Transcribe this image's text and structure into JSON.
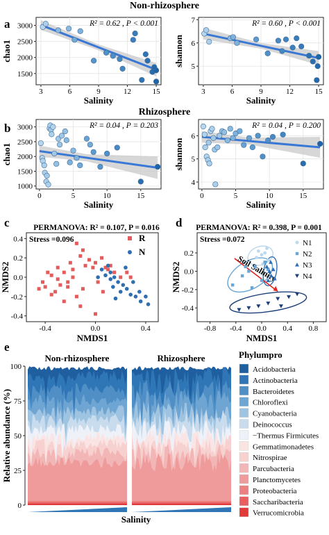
{
  "colors": {
    "point_dark": "#1f63a8",
    "point_mid": "#5b9bd0",
    "point_light": "#cfe5f5",
    "fit_line": "#3a78d6",
    "ci_band": "#c9c9c9",
    "r_marker": "#e35b5b",
    "n_marker": "#2f6fb1",
    "arrow": "#e32222"
  },
  "labels": {
    "a": "a",
    "b": "b",
    "c": "c",
    "d": "d",
    "e": "e",
    "nonrhizo_title": "Non-rhizosphere",
    "rhizo_title": "Rhizosphere",
    "salinity": "Salinity",
    "chao1": "chao1",
    "shannon": "shannon",
    "nmds1": "NMDS1",
    "nmds2": "NMDS2",
    "rel_abund": "Relative abundance (%)",
    "e_nonrhizo": "Non-rhizosphere",
    "e_rhizo": "Rhizosphere",
    "e_salinity": "Salinity",
    "phylum_title": "Phylumpro"
  },
  "chart_data": [
    {
      "id": "a-chao1",
      "type": "scatter",
      "stats": "R² = 0.62 , P < 0.001",
      "xlabel": "Salinity",
      "ylabel": "chao1",
      "xlim": [
        2.5,
        15.5
      ],
      "ylim": [
        1150,
        3250
      ],
      "xticks": [
        3,
        6,
        9,
        12,
        15
      ],
      "yticks": [
        1500,
        2000,
        2500,
        3000
      ],
      "fit": [
        [
          3,
          3010
        ],
        [
          15,
          1620
        ]
      ],
      "ci_half": [
        [
          3,
          150
        ],
        [
          9,
          90
        ],
        [
          15,
          210
        ]
      ],
      "x": [
        3.2,
        3.5,
        4.8,
        5.9,
        6.5,
        7.1,
        8.5,
        9.8,
        10.5,
        11.2,
        11.5,
        12.6,
        12.8,
        13.5,
        13.9,
        14.1,
        14.6,
        14.8,
        15.0,
        15.0,
        14.8
      ],
      "y": [
        2950,
        3050,
        2850,
        2900,
        2550,
        2820,
        1900,
        2150,
        2050,
        1950,
        1650,
        2550,
        2750,
        1300,
        2100,
        1900,
        1550,
        1620,
        1250,
        1600,
        1700
      ],
      "shade": [
        0.1,
        0.15,
        0.3,
        0.3,
        0.4,
        0.35,
        0.55,
        0.6,
        0.62,
        0.68,
        0.7,
        0.75,
        0.78,
        0.85,
        0.85,
        0.88,
        0.92,
        0.95,
        1,
        1,
        0.95
      ]
    },
    {
      "id": "a-shannon",
      "type": "scatter",
      "stats": "R² = 0.60 , P < 0.001",
      "xlabel": "Salinity",
      "ylabel": "shannon",
      "xlim": [
        2.5,
        15.5
      ],
      "ylim": [
        4.2,
        7.1
      ],
      "xticks": [
        3,
        6,
        9,
        12,
        15
      ],
      "yticks": [
        5,
        6,
        7
      ],
      "fit": [
        [
          3,
          6.4
        ],
        [
          15,
          5.35
        ]
      ],
      "ci_half": [
        [
          3,
          0.25
        ],
        [
          9,
          0.12
        ],
        [
          15,
          0.3
        ]
      ],
      "x": [
        3.1,
        3.3,
        3.6,
        5.8,
        6.1,
        6.5,
        8.5,
        9.7,
        10.8,
        11.2,
        11.6,
        12.3,
        12.7,
        13.2,
        14.0,
        14.4,
        14.9,
        15.0,
        14.8
      ],
      "y": [
        6.4,
        6.55,
        6.05,
        6.2,
        6.25,
        6.0,
        6.15,
        5.55,
        6.1,
        5.65,
        6.15,
        5.8,
        6.2,
        5.85,
        5.45,
        5.2,
        5.0,
        5.4,
        4.4
      ],
      "shade": [
        0.1,
        0.15,
        0.15,
        0.3,
        0.35,
        0.35,
        0.5,
        0.6,
        0.65,
        0.68,
        0.7,
        0.75,
        0.78,
        0.8,
        0.88,
        0.9,
        0.95,
        1,
        0.95
      ]
    },
    {
      "id": "b-chao1",
      "type": "scatter",
      "stats": "R² = 0.04 , P = 0.203",
      "xlabel": "Salinity",
      "ylabel": "chao1",
      "xlim": [
        -0.5,
        18
      ],
      "ylim": [
        900,
        3250
      ],
      "xticks": [
        0,
        5,
        10,
        15
      ],
      "yticks": [
        1000,
        1500,
        2000,
        2500,
        3000
      ],
      "fit": [
        [
          0,
          2180
        ],
        [
          17.5,
          1620
        ]
      ],
      "ci_half": [
        [
          0,
          190
        ],
        [
          7,
          120
        ],
        [
          17.5,
          380
        ]
      ],
      "x": [
        0.2,
        0.4,
        0.5,
        0.7,
        0.8,
        1.0,
        1.1,
        1.3,
        1.5,
        1.6,
        1.7,
        1.8,
        2.0,
        2.2,
        2.5,
        2.8,
        3.0,
        3.3,
        3.8,
        4.0,
        4.5,
        5.0,
        5.5,
        6.0,
        7.0,
        7.5,
        8.0,
        9.0,
        10.0,
        11.5,
        15.0,
        17.5
      ],
      "y": [
        2450,
        1950,
        1850,
        1700,
        1450,
        1150,
        1350,
        1050,
        2950,
        3050,
        2900,
        2750,
        3000,
        2100,
        1750,
        2600,
        2400,
        2700,
        2850,
        2550,
        1800,
        2200,
        1950,
        1700,
        2600,
        2400,
        2150,
        1650,
        2100,
        2300,
        1150,
        1650
      ],
      "shade": [
        0.1,
        0.12,
        0.12,
        0.15,
        0.15,
        0.15,
        0.18,
        0.15,
        0.12,
        0.15,
        0.2,
        0.15,
        0.12,
        0.2,
        0.25,
        0.2,
        0.22,
        0.2,
        0.25,
        0.3,
        0.35,
        0.3,
        0.35,
        0.4,
        0.45,
        0.4,
        0.5,
        0.55,
        0.6,
        0.65,
        0.9,
        1
      ]
    },
    {
      "id": "b-shannon",
      "type": "scatter",
      "stats": "R² = 0.04 , P = 0.200",
      "xlabel": "Salinity",
      "ylabel": "shannon",
      "xlim": [
        -0.5,
        18
      ],
      "ylim": [
        3.7,
        6.7
      ],
      "xticks": [
        0,
        5,
        10,
        15
      ],
      "yticks": [
        4,
        5,
        6
      ],
      "fit": [
        [
          0,
          5.95
        ],
        [
          17.5,
          5.5
        ]
      ],
      "ci_half": [
        [
          0,
          0.25
        ],
        [
          7,
          0.15
        ],
        [
          17.5,
          0.45
        ]
      ],
      "x": [
        0.2,
        0.4,
        0.5,
        0.7,
        0.9,
        1.0,
        1.1,
        1.3,
        1.5,
        1.7,
        1.9,
        2.0,
        2.3,
        2.6,
        3.0,
        3.3,
        3.8,
        4.2,
        4.6,
        5.0,
        5.6,
        6.2,
        7.0,
        7.5,
        8.3,
        9.0,
        9.8,
        10.5,
        12.0,
        15.0,
        17.5
      ],
      "y": [
        6.4,
        6.05,
        5.5,
        5.1,
        4.95,
        5.7,
        4.8,
        6.2,
        6.3,
        5.9,
        5.4,
        3.9,
        5.5,
        6.0,
        6.2,
        6.15,
        5.8,
        6.3,
        5.9,
        6.1,
        6.2,
        5.6,
        5.9,
        5.5,
        6.0,
        5.1,
        5.8,
        5.95,
        6.05,
        4.8,
        5.65
      ],
      "shade": [
        0.1,
        0.12,
        0.15,
        0.12,
        0.15,
        0.18,
        0.15,
        0.12,
        0.15,
        0.2,
        0.2,
        0.15,
        0.22,
        0.2,
        0.25,
        0.25,
        0.3,
        0.3,
        0.35,
        0.35,
        0.4,
        0.45,
        0.45,
        0.5,
        0.55,
        0.6,
        0.6,
        0.65,
        0.7,
        0.9,
        1
      ]
    },
    {
      "id": "c-nmds",
      "type": "scatter",
      "title": "PERMANOVA: R² = 0.107, P = 0.016",
      "stress": "Stress =0.096",
      "xlabel": "NMDS1",
      "ylabel": "NMDS2",
      "xlim": [
        -0.55,
        0.5
      ],
      "ylim": [
        -0.46,
        0.46
      ],
      "xticks": [
        -0.4,
        0.0,
        0.4
      ],
      "xtick_labels": [
        "-0.4",
        "0.0",
        "0.4"
      ],
      "yticks": [
        -0.4,
        -0.2,
        0.0,
        0.2,
        0.4
      ],
      "ytick_labels": [
        "-0.4",
        "-0.2",
        "0.0",
        "0.2",
        "0.4"
      ],
      "legend": [
        "R",
        "N"
      ],
      "series": [
        {
          "name": "R",
          "x": [
            -0.15,
            -0.1,
            -0.12,
            -0.2,
            -0.25,
            -0.3,
            -0.35,
            -0.18,
            -0.22,
            -0.28,
            -0.4,
            -0.45,
            -0.38,
            -0.32,
            -0.05,
            -0.08,
            -0.02,
            0.0,
            0.05,
            0.08,
            0.02,
            -0.15,
            -0.25,
            -0.35,
            -0.42,
            -0.12,
            0.12,
            0.15,
            0.1,
            0.2,
            -0.3,
            -0.22,
            -0.18,
            0.25,
            0.28,
            0.0,
            0.06,
            -0.1
          ],
          "y": [
            0.35,
            0.28,
            0.22,
            0.15,
            0.05,
            0.1,
            0.02,
            0.0,
            -0.05,
            -0.08,
            -0.1,
            -0.12,
            0.05,
            -0.15,
            0.18,
            0.12,
            0.1,
            0.15,
            0.2,
            0.1,
            -0.05,
            -0.2,
            -0.25,
            -0.18,
            -0.05,
            -0.3,
            0.12,
            0.05,
            0.08,
            0.0,
            -0.02,
            -0.1,
            0.08,
            0.05,
            0.0,
            -0.38,
            -0.15,
            -0.12
          ]
        },
        {
          "name": "N",
          "x": [
            0.05,
            0.08,
            0.12,
            0.15,
            0.18,
            0.22,
            0.25,
            0.2,
            0.28,
            0.32,
            0.35,
            0.1,
            0.14,
            0.3,
            0.4,
            0.42,
            0.02,
            0.16,
            0.24,
            0.36,
            0.12
          ],
          "y": [
            0.08,
            0.02,
            0.05,
            0.0,
            -0.05,
            -0.08,
            -0.12,
            -0.15,
            -0.18,
            -0.2,
            -0.15,
            0.12,
            -0.1,
            -0.05,
            -0.2,
            -0.28,
            0.0,
            -0.22,
            0.1,
            -0.25,
            -0.02
          ]
        }
      ]
    },
    {
      "id": "d-nmds",
      "type": "scatter",
      "title": "PERMANOVA: R² = 0.398, P = 0.001",
      "stress": "Stress =0.072",
      "xlabel": "NMDS1",
      "ylabel": "NMDS2",
      "xlim": [
        -1.0,
        1.0
      ],
      "ylim": [
        -0.55,
        0.42
      ],
      "xticks": [
        -0.8,
        -0.4,
        0.0,
        0.4,
        0.8
      ],
      "xtick_labels": [
        "-0.8",
        "-0.4",
        "0.0",
        "0.4",
        "0.8"
      ],
      "yticks": [
        -0.4,
        -0.2,
        0.0,
        0.2
      ],
      "ytick_labels": [
        "-0.4",
        "-0.2",
        "0.0",
        "0.2"
      ],
      "arrow_label": "Soil Salinity",
      "legend": [
        "N1",
        "N2",
        "N3",
        "N4"
      ],
      "series": [
        {
          "name": "N1",
          "x": [
            -0.05,
            0.0,
            0.05,
            0.1,
            0.02,
            -0.08,
            0.08
          ],
          "y": [
            0.22,
            0.18,
            0.2,
            0.12,
            0.08,
            0.15,
            0.25
          ]
        },
        {
          "name": "N2",
          "x": [
            -0.45,
            -0.3,
            -0.2,
            -0.1,
            0.0,
            0.05,
            -0.25,
            -0.15,
            0.1
          ],
          "y": [
            -0.15,
            -0.05,
            0.0,
            0.05,
            -0.1,
            0.1,
            0.05,
            -0.18,
            0.02
          ]
        },
        {
          "name": "N3",
          "x": [
            0.08,
            0.12,
            0.15,
            0.18,
            0.1,
            0.2,
            0.14
          ],
          "y": [
            0.05,
            0.0,
            -0.05,
            0.02,
            -0.1,
            -0.08,
            0.1
          ]
        },
        {
          "name": "N4",
          "x": [
            -0.35,
            -0.2,
            -0.05,
            0.1,
            0.25,
            0.42,
            0.55,
            0.3
          ],
          "y": [
            -0.42,
            -0.4,
            -0.38,
            -0.35,
            -0.3,
            -0.28,
            -0.25,
            -0.38
          ]
        }
      ]
    },
    {
      "id": "e-stacked",
      "type": "area",
      "ylabel": "Relative abundance (%)",
      "xlabel": "Salinity",
      "ylim": [
        0,
        100
      ],
      "yticks": [
        0,
        25,
        50,
        75,
        100
      ],
      "legend_title": "Phylumpro",
      "legend": [
        "Acidobacteria",
        "Actinobacteria",
        "Bacteroidetes",
        "Chloroflexi",
        "Cyanobacteria",
        "Deinococcus",
        "−Thermus Firmicutes",
        "Gemmatimonadetes",
        "Nitrospirae",
        "Parcubacteria",
        "Planctomycetes",
        "Proteobacteria",
        "Saccharibacteria",
        "Verrucomicrobia"
      ],
      "legend_colors": [
        "#1f5fa0",
        "#2f76b6",
        "#4f8fc6",
        "#6fa5d2",
        "#9fc4e2",
        "#c8dcee",
        "#eef2f8",
        "#fbe4e4",
        "#f7d0d0",
        "#f3b6b6",
        "#ef9b9b",
        "#ec8080",
        "#e95f5f",
        "#e03a3a"
      ]
    }
  ]
}
